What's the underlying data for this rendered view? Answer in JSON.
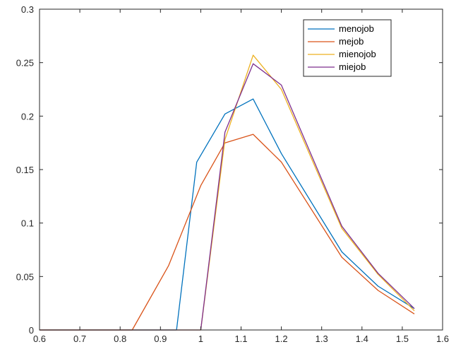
{
  "chart_data": {
    "type": "line",
    "title": "",
    "xlabel": "",
    "ylabel": "",
    "xlim": [
      0.6,
      1.6
    ],
    "ylim": [
      0,
      0.3
    ],
    "xticks": [
      "0.6",
      "0.7",
      "0.8",
      "0.9",
      "1",
      "1.1",
      "1.2",
      "1.3",
      "1.4",
      "1.5",
      "1.6"
    ],
    "yticks": [
      "0",
      "0.05",
      "0.1",
      "0.15",
      "0.2",
      "0.25",
      "0.3"
    ],
    "grid": false,
    "legend_position": "top-right",
    "series": [
      {
        "name": "menojob",
        "color": "#0072bd",
        "points": [
          [
            0.6,
            0
          ],
          [
            0.94,
            0
          ],
          [
            0.99,
            0.157
          ],
          [
            1.06,
            0.202
          ],
          [
            1.13,
            0.216
          ],
          [
            1.2,
            0.165
          ],
          [
            1.35,
            0.073
          ],
          [
            1.44,
            0.041
          ],
          [
            1.53,
            0.02
          ]
        ]
      },
      {
        "name": "mejob",
        "color": "#d95319",
        "points": [
          [
            0.6,
            0
          ],
          [
            0.83,
            0
          ],
          [
            0.92,
            0.06
          ],
          [
            1.0,
            0.135
          ],
          [
            1.06,
            0.175
          ],
          [
            1.13,
            0.183
          ],
          [
            1.2,
            0.157
          ],
          [
            1.35,
            0.068
          ],
          [
            1.44,
            0.037
          ],
          [
            1.53,
            0.015
          ]
        ]
      },
      {
        "name": "mienojob",
        "color": "#edb120",
        "points": [
          [
            0.6,
            0
          ],
          [
            1.0,
            0
          ],
          [
            1.06,
            0.178
          ],
          [
            1.13,
            0.257
          ],
          [
            1.2,
            0.225
          ],
          [
            1.35,
            0.095
          ],
          [
            1.44,
            0.052
          ],
          [
            1.53,
            0.018
          ]
        ]
      },
      {
        "name": "miejob",
        "color": "#7e2f8e",
        "points": [
          [
            0.6,
            0
          ],
          [
            1.0,
            0
          ],
          [
            1.06,
            0.185
          ],
          [
            1.13,
            0.249
          ],
          [
            1.2,
            0.229
          ],
          [
            1.35,
            0.097
          ],
          [
            1.44,
            0.053
          ],
          [
            1.53,
            0.02
          ]
        ]
      }
    ]
  }
}
